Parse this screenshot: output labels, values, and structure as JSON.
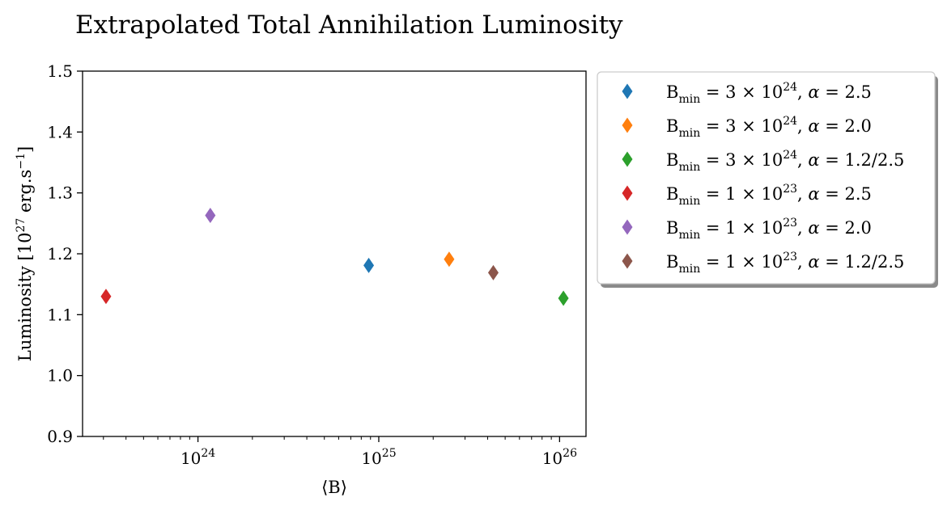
{
  "chart_data": {
    "type": "scatter",
    "title": "Extrapolated Total Annihilation Luminosity",
    "xlabel": "⟨B⟩",
    "ylabel": "Luminosity [10^27 erg.s^-1]",
    "ylabel_parts": {
      "pre": "Luminosity [10",
      "exp": "27",
      "mid": " erg.s",
      "exp2": "−1",
      "post": "]"
    },
    "xscale": "log",
    "xlim": [
      2.3e+23,
      1.4e+26
    ],
    "ylim": [
      0.9,
      1.5
    ],
    "yticks": [
      0.9,
      1.0,
      1.1,
      1.2,
      1.3,
      1.4,
      1.5
    ],
    "ytick_labels": [
      "0.9",
      "1.0",
      "1.1",
      "1.2",
      "1.3",
      "1.4",
      "1.5"
    ],
    "xticks": [
      {
        "value": 1e+24,
        "base": "10",
        "exp": "24"
      },
      {
        "value": 1e+25,
        "base": "10",
        "exp": "25"
      },
      {
        "value": 1e+26,
        "base": "10",
        "exp": "26"
      }
    ],
    "legend_position": "outside upper right",
    "series": [
      {
        "name": "B_min = 3×10^24, α = 2.5",
        "bmin_mant": "3",
        "bmin_exp": "24",
        "alpha": "2.5",
        "color": "#1f77b4",
        "x": 8.8e+24,
        "y": 1.181
      },
      {
        "name": "B_min = 3×10^24, α = 2.0",
        "bmin_mant": "3",
        "bmin_exp": "24",
        "alpha": "2.0",
        "color": "#ff7f0e",
        "x": 2.45e+25,
        "y": 1.191
      },
      {
        "name": "B_min = 3×10^24, α = 1.2/2.5",
        "bmin_mant": "3",
        "bmin_exp": "24",
        "alpha": "1.2/2.5",
        "color": "#2ca02c",
        "x": 1.05e+26,
        "y": 1.127
      },
      {
        "name": "B_min = 1×10^23, α = 2.5",
        "bmin_mant": "1",
        "bmin_exp": "23",
        "alpha": "2.5",
        "color": "#d62728",
        "x": 3.1e+23,
        "y": 1.13
      },
      {
        "name": "B_min = 1×10^23, α = 2.0",
        "bmin_mant": "1",
        "bmin_exp": "23",
        "alpha": "2.0",
        "color": "#9467bd",
        "x": 1.17e+24,
        "y": 1.263
      },
      {
        "name": "B_min = 1×10^23, α = 1.2/2.5",
        "bmin_mant": "1",
        "bmin_exp": "23",
        "alpha": "1.2/2.5",
        "color": "#8c564b",
        "x": 4.3e+25,
        "y": 1.169
      }
    ]
  }
}
